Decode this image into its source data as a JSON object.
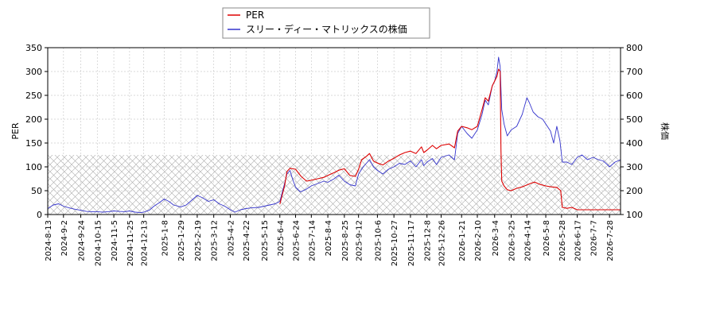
{
  "chart_data": {
    "type": "line",
    "legend": {
      "placement": "top-center",
      "entries": [
        {
          "label": "PER",
          "color": "#dd0000"
        },
        {
          "label": "スリー・ディー・マトリックスの株価",
          "color": "#3333cc"
        }
      ]
    },
    "ylabel_left": "PER",
    "ylabel_right": "株価",
    "ylim_left": [
      0,
      350
    ],
    "ylim_right": [
      100,
      800
    ],
    "yticks_left": [
      0,
      50,
      100,
      150,
      200,
      250,
      300,
      350
    ],
    "yticks_right": [
      100,
      200,
      300,
      400,
      500,
      600,
      700,
      800
    ],
    "hatched_band_left": [
      0,
      125
    ],
    "grid": true,
    "x_start": "2024-08-13",
    "x_end": "2026-08-11",
    "x_ticks": [
      "2024-8-13",
      "2024-9-2",
      "2024-9-24",
      "2024-10-15",
      "2024-11-5",
      "2024-11-25",
      "2024-12-13",
      "2025-1-8",
      "2025-1-29",
      "2025-2-19",
      "2025-3-12",
      "2025-4-2",
      "2025-4-22",
      "2025-5-15",
      "2025-6-4",
      "2025-6-24",
      "2025-7-14",
      "2025-8-4",
      "2025-8-25",
      "2025-9-12",
      "2025-10-6",
      "2025-10-27",
      "2025-11-17",
      "2025-12-8",
      "2025-12-26",
      "2026-1-21",
      "2026-2-10",
      "2026-3-4",
      "2026-3-25",
      "2026-4-14",
      "2026-5-8",
      "2026-5-28",
      "2026-6-17",
      "2026-7-7",
      "2026-7-28"
    ],
    "series": [
      {
        "name": "PER",
        "axis": "left",
        "color": "#dd0000",
        "points": [
          [
            "2025-06-04",
            22
          ],
          [
            "2025-06-10",
            60
          ],
          [
            "2025-06-13",
            90
          ],
          [
            "2025-06-17",
            97
          ],
          [
            "2025-06-24",
            95
          ],
          [
            "2025-07-01",
            80
          ],
          [
            "2025-07-08",
            70
          ],
          [
            "2025-07-14",
            72
          ],
          [
            "2025-07-22",
            75
          ],
          [
            "2025-07-30",
            78
          ],
          [
            "2025-08-04",
            82
          ],
          [
            "2025-08-12",
            88
          ],
          [
            "2025-08-18",
            93
          ],
          [
            "2025-08-25",
            96
          ],
          [
            "2025-09-01",
            82
          ],
          [
            "2025-09-08",
            80
          ],
          [
            "2025-09-12",
            95
          ],
          [
            "2025-09-16",
            115
          ],
          [
            "2025-09-22",
            122
          ],
          [
            "2025-09-26",
            128
          ],
          [
            "2025-10-01",
            112
          ],
          [
            "2025-10-06",
            108
          ],
          [
            "2025-10-13",
            104
          ],
          [
            "2025-10-20",
            112
          ],
          [
            "2025-10-27",
            118
          ],
          [
            "2025-11-03",
            125
          ],
          [
            "2025-11-10",
            130
          ],
          [
            "2025-11-17",
            133
          ],
          [
            "2025-11-24",
            128
          ],
          [
            "2025-12-01",
            142
          ],
          [
            "2025-12-04",
            130
          ],
          [
            "2025-12-08",
            135
          ],
          [
            "2025-12-15",
            145
          ],
          [
            "2025-12-20",
            138
          ],
          [
            "2025-12-26",
            145
          ],
          [
            "2026-01-05",
            148
          ],
          [
            "2026-01-12",
            140
          ],
          [
            "2026-01-16",
            175
          ],
          [
            "2026-01-21",
            185
          ],
          [
            "2026-01-28",
            182
          ],
          [
            "2026-02-03",
            178
          ],
          [
            "2026-02-10",
            185
          ],
          [
            "2026-02-16",
            220
          ],
          [
            "2026-02-20",
            245
          ],
          [
            "2026-02-24",
            238
          ],
          [
            "2026-03-01",
            270
          ],
          [
            "2026-03-04",
            280
          ],
          [
            "2026-03-07",
            290
          ],
          [
            "2026-03-09",
            305
          ],
          [
            "2026-03-11",
            300
          ],
          [
            "2026-03-12",
            135
          ],
          [
            "2026-03-13",
            70
          ],
          [
            "2026-03-16",
            60
          ],
          [
            "2026-03-20",
            52
          ],
          [
            "2026-03-25",
            50
          ],
          [
            "2026-04-01",
            55
          ],
          [
            "2026-04-08",
            58
          ],
          [
            "2026-04-14",
            62
          ],
          [
            "2026-04-20",
            66
          ],
          [
            "2026-04-24",
            68
          ],
          [
            "2026-05-01",
            63
          ],
          [
            "2026-05-08",
            60
          ],
          [
            "2026-05-15",
            58
          ],
          [
            "2026-05-22",
            57
          ],
          [
            "2026-05-27",
            50
          ],
          [
            "2026-05-29",
            15
          ],
          [
            "2026-06-04",
            13
          ],
          [
            "2026-06-10",
            15
          ],
          [
            "2026-06-17",
            10
          ],
          [
            "2026-06-25",
            10
          ],
          [
            "2026-07-07",
            10
          ],
          [
            "2026-07-20",
            10
          ],
          [
            "2026-07-28",
            10
          ],
          [
            "2026-08-11",
            10
          ]
        ]
      },
      {
        "name": "スリー・ディー・マトリックスの株価",
        "axis": "right",
        "color": "#3333cc",
        "points": [
          [
            "2024-08-13",
            125
          ],
          [
            "2024-08-20",
            140
          ],
          [
            "2024-08-27",
            145
          ],
          [
            "2024-09-02",
            135
          ],
          [
            "2024-09-09",
            128
          ],
          [
            "2024-09-17",
            122
          ],
          [
            "2024-09-24",
            118
          ],
          [
            "2024-10-01",
            113
          ],
          [
            "2024-10-08",
            112
          ],
          [
            "2024-10-15",
            112
          ],
          [
            "2024-10-22",
            110
          ],
          [
            "2024-10-29",
            112
          ],
          [
            "2024-11-05",
            115
          ],
          [
            "2024-11-12",
            113
          ],
          [
            "2024-11-19",
            112
          ],
          [
            "2024-11-25",
            115
          ],
          [
            "2024-12-02",
            110
          ],
          [
            "2024-12-09",
            108
          ],
          [
            "2024-12-13",
            110
          ],
          [
            "2024-12-20",
            118
          ],
          [
            "2024-12-26",
            135
          ],
          [
            "2025-01-02",
            150
          ],
          [
            "2025-01-08",
            165
          ],
          [
            "2025-01-14",
            155
          ],
          [
            "2025-01-20",
            140
          ],
          [
            "2025-01-29",
            132
          ],
          [
            "2025-02-05",
            140
          ],
          [
            "2025-02-12",
            160
          ],
          [
            "2025-02-19",
            180
          ],
          [
            "2025-02-26",
            170
          ],
          [
            "2025-03-05",
            155
          ],
          [
            "2025-03-12",
            162
          ],
          [
            "2025-03-19",
            145
          ],
          [
            "2025-03-26",
            135
          ],
          [
            "2025-04-02",
            120
          ],
          [
            "2025-04-08",
            110
          ],
          [
            "2025-04-15",
            120
          ],
          [
            "2025-04-22",
            125
          ],
          [
            "2025-04-29",
            128
          ],
          [
            "2025-05-08",
            130
          ],
          [
            "2025-05-15",
            135
          ],
          [
            "2025-05-22",
            140
          ],
          [
            "2025-05-29",
            145
          ],
          [
            "2025-06-04",
            155
          ],
          [
            "2025-06-10",
            230
          ],
          [
            "2025-06-13",
            270
          ],
          [
            "2025-06-17",
            285
          ],
          [
            "2025-06-20",
            250
          ],
          [
            "2025-06-24",
            215
          ],
          [
            "2025-06-30",
            195
          ],
          [
            "2025-07-07",
            205
          ],
          [
            "2025-07-14",
            220
          ],
          [
            "2025-07-22",
            230
          ],
          [
            "2025-07-30",
            240
          ],
          [
            "2025-08-04",
            235
          ],
          [
            "2025-08-12",
            250
          ],
          [
            "2025-08-18",
            265
          ],
          [
            "2025-08-25",
            240
          ],
          [
            "2025-09-01",
            225
          ],
          [
            "2025-09-08",
            220
          ],
          [
            "2025-09-12",
            270
          ],
          [
            "2025-09-18",
            300
          ],
          [
            "2025-09-26",
            330
          ],
          [
            "2025-10-01",
            300
          ],
          [
            "2025-10-06",
            285
          ],
          [
            "2025-10-13",
            270
          ],
          [
            "2025-10-20",
            290
          ],
          [
            "2025-10-27",
            300
          ],
          [
            "2025-11-03",
            315
          ],
          [
            "2025-11-10",
            310
          ],
          [
            "2025-11-17",
            325
          ],
          [
            "2025-11-24",
            300
          ],
          [
            "2025-12-01",
            330
          ],
          [
            "2025-12-04",
            305
          ],
          [
            "2025-12-08",
            320
          ],
          [
            "2025-12-15",
            335
          ],
          [
            "2025-12-20",
            310
          ],
          [
            "2025-12-26",
            340
          ],
          [
            "2026-01-05",
            350
          ],
          [
            "2026-01-12",
            330
          ],
          [
            "2026-01-16",
            440
          ],
          [
            "2026-01-21",
            470
          ],
          [
            "2026-01-28",
            440
          ],
          [
            "2026-02-03",
            420
          ],
          [
            "2026-02-10",
            455
          ],
          [
            "2026-02-16",
            520
          ],
          [
            "2026-02-20",
            580
          ],
          [
            "2026-02-24",
            560
          ],
          [
            "2026-03-01",
            640
          ],
          [
            "2026-03-04",
            660
          ],
          [
            "2026-03-07",
            700
          ],
          [
            "2026-03-09",
            760
          ],
          [
            "2026-03-11",
            720
          ],
          [
            "2026-03-13",
            540
          ],
          [
            "2026-03-16",
            480
          ],
          [
            "2026-03-20",
            430
          ],
          [
            "2026-03-25",
            455
          ],
          [
            "2026-04-01",
            470
          ],
          [
            "2026-04-08",
            520
          ],
          [
            "2026-04-14",
            590
          ],
          [
            "2026-04-17",
            570
          ],
          [
            "2026-04-22",
            530
          ],
          [
            "2026-04-28",
            510
          ],
          [
            "2026-05-04",
            500
          ],
          [
            "2026-05-08",
            480
          ],
          [
            "2026-05-14",
            450
          ],
          [
            "2026-05-18",
            400
          ],
          [
            "2026-05-22",
            470
          ],
          [
            "2026-05-26",
            410
          ],
          [
            "2026-05-29",
            320
          ],
          [
            "2026-06-04",
            320
          ],
          [
            "2026-06-10",
            310
          ],
          [
            "2026-06-17",
            340
          ],
          [
            "2026-06-23",
            350
          ],
          [
            "2026-06-30",
            330
          ],
          [
            "2026-07-07",
            340
          ],
          [
            "2026-07-14",
            330
          ],
          [
            "2026-07-20",
            325
          ],
          [
            "2026-07-25",
            310
          ],
          [
            "2026-07-28",
            300
          ],
          [
            "2026-08-04",
            320
          ],
          [
            "2026-08-11",
            330
          ]
        ]
      }
    ]
  }
}
